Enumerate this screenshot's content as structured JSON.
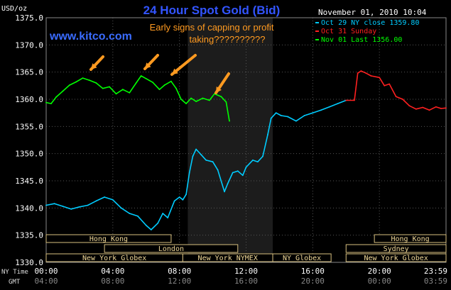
{
  "header": {
    "currency_label": "USD/oz",
    "title": "24 Hour Spot Gold (Bid)",
    "timestamp": "November 01, 2010 10:04",
    "site": "www.kitco.com",
    "annotation": [
      "Early signs of capping or profit",
      "taking??????????"
    ]
  },
  "chart_data": {
    "type": "line",
    "title": "24 Hour Spot Gold (Bid)",
    "ylabel": "USD/oz",
    "ylim": [
      1330,
      1375
    ],
    "y_ticks": [
      "1330.0",
      "1335.0",
      "1340.0",
      "1345.0",
      "1350.0",
      "1355.0",
      "1360.0",
      "1365.0",
      "1370.0",
      "1375.0"
    ],
    "xlim": [
      0,
      24
    ],
    "x_ticks_ny": [
      "00:00",
      "04:00",
      "08:00",
      "12:00",
      "16:00",
      "20:00",
      "23:59"
    ],
    "x_ticks_gmt": [
      "04:00",
      "08:00",
      "12:00",
      "16:00",
      "20:00",
      "00:00",
      "03:59"
    ],
    "x_axis_labels": [
      "NY Time",
      "GMT"
    ],
    "grid": true,
    "legend_position": "top-right",
    "shaded_region": [
      8.5,
      13.6
    ],
    "series": [
      {
        "name": "Oct 29 NY close 1359.80",
        "color": "#00ccff",
        "points": [
          [
            0,
            1340.5
          ],
          [
            0.5,
            1340.8
          ],
          [
            1,
            1340.3
          ],
          [
            1.5,
            1339.8
          ],
          [
            2,
            1340.2
          ],
          [
            2.5,
            1340.5
          ],
          [
            3,
            1341.3
          ],
          [
            3.5,
            1342.0
          ],
          [
            4,
            1341.5
          ],
          [
            4.5,
            1340.0
          ],
          [
            5,
            1339.0
          ],
          [
            5.5,
            1338.5
          ],
          [
            6,
            1336.8
          ],
          [
            6.3,
            1336.0
          ],
          [
            6.7,
            1337.2
          ],
          [
            7,
            1339.0
          ],
          [
            7.3,
            1338.2
          ],
          [
            7.7,
            1341.3
          ],
          [
            8,
            1342.0
          ],
          [
            8.2,
            1341.5
          ],
          [
            8.4,
            1342.5
          ],
          [
            8.6,
            1346.5
          ],
          [
            8.8,
            1349.5
          ],
          [
            9,
            1350.8
          ],
          [
            9.3,
            1349.8
          ],
          [
            9.6,
            1348.8
          ],
          [
            10,
            1348.5
          ],
          [
            10.3,
            1347.0
          ],
          [
            10.7,
            1343.0
          ],
          [
            10.9,
            1344.5
          ],
          [
            11.2,
            1346.5
          ],
          [
            11.5,
            1346.8
          ],
          [
            11.8,
            1346.0
          ],
          [
            12,
            1347.5
          ],
          [
            12.4,
            1348.8
          ],
          [
            12.7,
            1348.5
          ],
          [
            13,
            1349.5
          ],
          [
            13.3,
            1353.5
          ],
          [
            13.5,
            1356.5
          ],
          [
            13.8,
            1357.5
          ],
          [
            14.1,
            1357.0
          ],
          [
            14.5,
            1356.8
          ],
          [
            15,
            1356.0
          ],
          [
            15.5,
            1357.0
          ],
          [
            16,
            1357.5
          ],
          [
            16.5,
            1358.0
          ],
          [
            17,
            1358.6
          ],
          [
            17.5,
            1359.2
          ],
          [
            18,
            1359.8
          ]
        ]
      },
      {
        "name": "Oct 31 Sunday",
        "color": "#ff2020",
        "points": [
          [
            18,
            1359.8
          ],
          [
            18.5,
            1359.8
          ],
          [
            18.7,
            1364.8
          ],
          [
            18.9,
            1365.2
          ],
          [
            19.2,
            1364.8
          ],
          [
            19.5,
            1364.3
          ],
          [
            20,
            1364.0
          ],
          [
            20.3,
            1362.5
          ],
          [
            20.6,
            1362.8
          ],
          [
            21,
            1360.5
          ],
          [
            21.4,
            1360.0
          ],
          [
            21.8,
            1358.8
          ],
          [
            22.2,
            1358.2
          ],
          [
            22.6,
            1358.5
          ],
          [
            23,
            1358.0
          ],
          [
            23.4,
            1358.6
          ],
          [
            23.7,
            1358.3
          ],
          [
            24,
            1358.4
          ]
        ]
      },
      {
        "name": "Nov 01 Last 1356.00",
        "color": "#00ff00",
        "points": [
          [
            0,
            1359.4
          ],
          [
            0.3,
            1359.2
          ],
          [
            0.6,
            1360.4
          ],
          [
            1,
            1361.5
          ],
          [
            1.4,
            1362.6
          ],
          [
            1.8,
            1363.2
          ],
          [
            2.2,
            1363.9
          ],
          [
            2.6,
            1363.5
          ],
          [
            3,
            1363.0
          ],
          [
            3.4,
            1362.0
          ],
          [
            3.8,
            1362.3
          ],
          [
            4.2,
            1361.0
          ],
          [
            4.6,
            1361.8
          ],
          [
            5,
            1361.2
          ],
          [
            5.4,
            1363.0
          ],
          [
            5.7,
            1364.3
          ],
          [
            6,
            1363.8
          ],
          [
            6.4,
            1363.1
          ],
          [
            6.8,
            1361.8
          ],
          [
            7.1,
            1362.6
          ],
          [
            7.5,
            1363.3
          ],
          [
            7.8,
            1362.0
          ],
          [
            8.1,
            1360.0
          ],
          [
            8.4,
            1359.2
          ],
          [
            8.7,
            1360.2
          ],
          [
            9,
            1359.6
          ],
          [
            9.4,
            1360.2
          ],
          [
            9.8,
            1359.8
          ],
          [
            10.1,
            1361.0
          ],
          [
            10.5,
            1360.5
          ],
          [
            10.8,
            1359.5
          ],
          [
            11,
            1356.0
          ]
        ]
      }
    ]
  },
  "markets": [
    {
      "label": "Hong Kong",
      "start": 0.0,
      "end": 7.5,
      "row": 0
    },
    {
      "label": "London",
      "start": 3.5,
      "end": 11.5,
      "row": 1
    },
    {
      "label": "New York Globex",
      "start": 0.0,
      "end": 8.2,
      "row": 2
    },
    {
      "label": "New York NYMEX",
      "start": 8.2,
      "end": 13.6,
      "row": 2
    },
    {
      "label": "NY Globex",
      "start": 13.6,
      "end": 17.1,
      "row": 2
    },
    {
      "label": "Hong Kong",
      "start": 19.7,
      "end": 24.0,
      "row": 0
    },
    {
      "label": "Sydney",
      "start": 18.0,
      "end": 24.0,
      "row": 1
    },
    {
      "label": "New York Globex",
      "start": 18.0,
      "end": 24.0,
      "row": 2
    }
  ]
}
